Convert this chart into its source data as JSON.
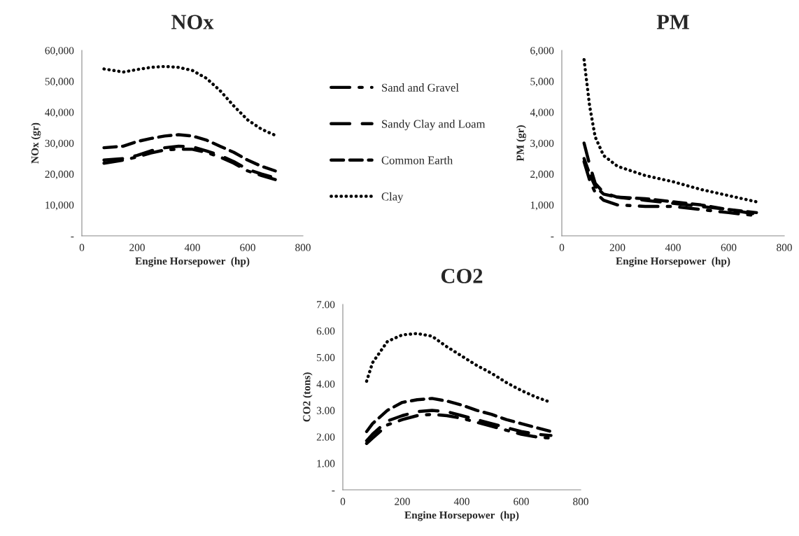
{
  "chart_data": [
    {
      "type": "line",
      "title": "NOx",
      "xlabel": "Engine Horsepower  (hp)",
      "ylabel": "NOx (gr)",
      "xlim": [
        0,
        800
      ],
      "xticks": [
        0,
        200,
        400,
        600,
        800
      ],
      "ylim": [
        0,
        60000
      ],
      "yticks": [
        {
          "value": 0,
          "label": "-"
        },
        {
          "value": 10000,
          "label": "10,000"
        },
        {
          "value": 20000,
          "label": "20,000"
        },
        {
          "value": 30000,
          "label": "30,000"
        },
        {
          "value": 40000,
          "label": "40,000"
        },
        {
          "value": 50000,
          "label": "50,000"
        },
        {
          "value": 60000,
          "label": "60,000"
        }
      ],
      "grid": false,
      "legend": "right",
      "series": [
        {
          "name": "Sand and Gravel",
          "color": "#000000",
          "line_style": "dashdot",
          "x": [
            80,
            150,
            200,
            250,
            300,
            350,
            400,
            450,
            500,
            550,
            600,
            650,
            700
          ],
          "values": [
            23500,
            24500,
            25500,
            26800,
            27800,
            28000,
            28000,
            27000,
            25500,
            23500,
            21000,
            19500,
            18200
          ]
        },
        {
          "name": "Sandy Clay and Loam",
          "color": "#000000",
          "line_style": "longdash",
          "x": [
            80,
            150,
            200,
            250,
            300,
            350,
            400,
            450,
            500,
            550,
            600,
            650,
            700
          ],
          "values": [
            24500,
            25000,
            26000,
            27500,
            28500,
            29000,
            28800,
            27500,
            26000,
            24000,
            21500,
            20000,
            18700
          ]
        },
        {
          "name": "Common Earth",
          "color": "#000000",
          "line_style": "dashed",
          "x": [
            80,
            150,
            200,
            250,
            300,
            350,
            400,
            450,
            500,
            550,
            600,
            650,
            700
          ],
          "values": [
            28500,
            29000,
            30500,
            31500,
            32300,
            32700,
            32300,
            31000,
            29000,
            27000,
            24500,
            22500,
            21000
          ]
        },
        {
          "name": "Clay",
          "color": "#000000",
          "line_style": "dotted",
          "x": [
            80,
            150,
            200,
            250,
            300,
            350,
            400,
            450,
            500,
            550,
            600,
            650,
            700
          ],
          "values": [
            54000,
            53000,
            53800,
            54500,
            54800,
            54500,
            53500,
            51000,
            47000,
            42000,
            37500,
            34500,
            32500
          ]
        }
      ]
    },
    {
      "type": "line",
      "title": "PM",
      "xlabel": "Engine Horsepower  (hp)",
      "ylabel": "PM (gr)",
      "xlim": [
        0,
        800
      ],
      "xticks": [
        0,
        200,
        400,
        600,
        800
      ],
      "ylim": [
        0,
        6000
      ],
      "yticks": [
        {
          "value": 0,
          "label": "-"
        },
        {
          "value": 1000,
          "label": "1,000"
        },
        {
          "value": 2000,
          "label": "2,000"
        },
        {
          "value": 3000,
          "label": "3,000"
        },
        {
          "value": 4000,
          "label": "4,000"
        },
        {
          "value": 5000,
          "label": "5,000"
        },
        {
          "value": 6000,
          "label": "6,000"
        }
      ],
      "grid": false,
      "series": [
        {
          "color": "#000000",
          "line_style": "dashdot",
          "x": [
            80,
            100,
            120,
            150,
            200,
            300,
            400,
            500,
            600,
            700
          ],
          "values": [
            2400,
            1800,
            1400,
            1150,
            1000,
            950,
            950,
            850,
            750,
            650
          ]
        },
        {
          "color": "#000000",
          "line_style": "longdash",
          "x": [
            80,
            100,
            120,
            150,
            200,
            300,
            400,
            500,
            600,
            700
          ],
          "values": [
            3000,
            2300,
            1700,
            1400,
            1250,
            1150,
            1050,
            950,
            850,
            700
          ]
        },
        {
          "color": "#000000",
          "line_style": "dashed",
          "x": [
            80,
            100,
            120,
            150,
            200,
            300,
            400,
            500,
            600,
            700
          ],
          "values": [
            2500,
            2000,
            1600,
            1350,
            1250,
            1200,
            1100,
            1000,
            850,
            750
          ]
        },
        {
          "color": "#000000",
          "line_style": "dotted",
          "x": [
            80,
            100,
            120,
            150,
            200,
            300,
            400,
            500,
            600,
            700
          ],
          "values": [
            5700,
            4200,
            3200,
            2600,
            2250,
            1950,
            1750,
            1500,
            1300,
            1100
          ]
        }
      ]
    },
    {
      "type": "line",
      "title": "CO2",
      "xlabel": "Engine Horsepower  (hp)",
      "ylabel": "CO2 (tons)",
      "xlim": [
        0,
        800
      ],
      "xticks": [
        0,
        200,
        400,
        600,
        800
      ],
      "ylim": [
        0,
        7
      ],
      "yticks": [
        {
          "value": 0,
          "label": "-"
        },
        {
          "value": 1,
          "label": "1.00"
        },
        {
          "value": 2,
          "label": "2.00"
        },
        {
          "value": 3,
          "label": "3.00"
        },
        {
          "value": 4,
          "label": "4.00"
        },
        {
          "value": 5,
          "label": "5.00"
        },
        {
          "value": 6,
          "label": "6.00"
        },
        {
          "value": 7,
          "label": "7.00"
        }
      ],
      "grid": false,
      "series": [
        {
          "color": "#000000",
          "line_style": "dashdot",
          "x": [
            80,
            100,
            150,
            200,
            250,
            300,
            350,
            400,
            450,
            500,
            550,
            600,
            650,
            700
          ],
          "values": [
            1.75,
            1.95,
            2.45,
            2.65,
            2.8,
            2.85,
            2.8,
            2.7,
            2.55,
            2.4,
            2.25,
            2.1,
            2.0,
            1.95
          ]
        },
        {
          "color": "#000000",
          "line_style": "longdash",
          "x": [
            80,
            100,
            150,
            200,
            250,
            300,
            350,
            400,
            450,
            500,
            550,
            600,
            650,
            700
          ],
          "values": [
            1.85,
            2.1,
            2.6,
            2.8,
            2.95,
            3.0,
            2.95,
            2.8,
            2.65,
            2.5,
            2.35,
            2.2,
            2.1,
            2.05
          ]
        },
        {
          "color": "#000000",
          "line_style": "dashed",
          "x": [
            80,
            100,
            150,
            200,
            250,
            300,
            350,
            400,
            450,
            500,
            550,
            600,
            650,
            700
          ],
          "values": [
            2.2,
            2.5,
            3.0,
            3.3,
            3.4,
            3.45,
            3.35,
            3.2,
            3.0,
            2.85,
            2.65,
            2.5,
            2.35,
            2.2
          ]
        },
        {
          "color": "#000000",
          "line_style": "dotted",
          "x": [
            80,
            100,
            150,
            200,
            250,
            300,
            350,
            400,
            450,
            500,
            550,
            600,
            650,
            700
          ],
          "values": [
            4.1,
            4.8,
            5.6,
            5.85,
            5.9,
            5.8,
            5.4,
            5.05,
            4.7,
            4.4,
            4.05,
            3.75,
            3.5,
            3.3
          ]
        }
      ]
    }
  ]
}
